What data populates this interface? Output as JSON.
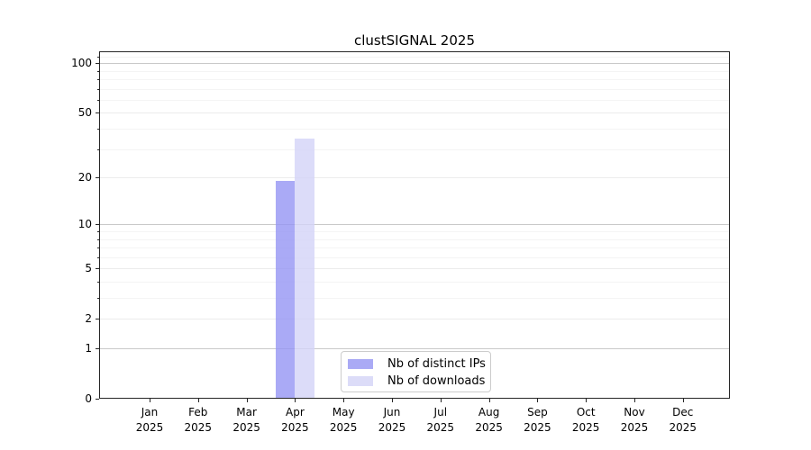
{
  "chart_data": {
    "type": "bar",
    "title": "clustSIGNAL 2025",
    "categories": [
      "Jan 2025",
      "Feb 2025",
      "Mar 2025",
      "Apr 2025",
      "May 2025",
      "Jun 2025",
      "Jul 2025",
      "Aug 2025",
      "Sep 2025",
      "Oct 2025",
      "Nov 2025",
      "Dec 2025"
    ],
    "series": [
      {
        "name": "Nb of distinct IPs",
        "color": "#aaaaf5",
        "fill": "rgba(149,149,244,0.8)",
        "values": [
          0,
          0,
          0,
          19,
          0,
          0,
          0,
          0,
          0,
          0,
          0,
          0
        ]
      },
      {
        "name": "Nb of downloads",
        "color": "#dcdcf8",
        "fill": "rgba(211,211,247,0.8)",
        "values": [
          0,
          0,
          0,
          35,
          0,
          0,
          0,
          0,
          0,
          0,
          0,
          0
        ]
      }
    ],
    "xlabel": "",
    "ylabel": "",
    "y_axis": {
      "scale": "log1p",
      "ticks": [
        0,
        1,
        2,
        5,
        10,
        20,
        50,
        100
      ],
      "minor_ticks": [
        3,
        4,
        6,
        7,
        8,
        9,
        30,
        40,
        60,
        70,
        80,
        90,
        110
      ],
      "ylim": [
        0,
        118
      ]
    },
    "grid": "on",
    "legend_position": "lower center",
    "colors": {
      "spine": "#262626",
      "grid_decade": "#c9c9c9",
      "grid_major": "#ececec",
      "grid_minor": "#f4f4f4",
      "legend_border": "#cccccc",
      "text": "#000000"
    }
  }
}
